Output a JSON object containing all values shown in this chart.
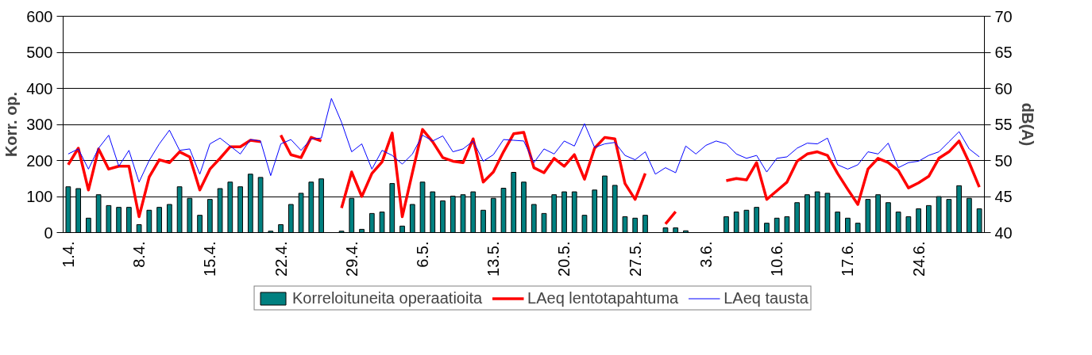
{
  "chart_data": {
    "type": "bar",
    "ylabel": "Korr. op.",
    "y2label": "dB(A)",
    "categories": [
      "1.4.",
      null,
      null,
      null,
      null,
      null,
      null,
      "8.4.",
      null,
      null,
      null,
      null,
      null,
      null,
      "15.4.",
      null,
      null,
      null,
      null,
      null,
      null,
      "22.4.",
      null,
      null,
      null,
      null,
      null,
      null,
      "29.4.",
      null,
      null,
      null,
      null,
      null,
      null,
      "6.5.",
      null,
      null,
      null,
      null,
      null,
      null,
      "13.5.",
      null,
      null,
      null,
      null,
      null,
      null,
      "20.5.",
      null,
      null,
      null,
      null,
      null,
      null,
      "27.5.",
      null,
      null,
      null,
      null,
      null,
      null,
      "3.6.",
      null,
      null,
      null,
      null,
      null,
      null,
      "10.6.",
      null,
      null,
      null,
      null,
      null,
      null,
      "17.6.",
      null,
      null,
      null,
      null,
      null,
      null,
      "24.6.",
      null,
      null,
      null,
      null,
      null,
      null
    ],
    "ylim": [
      0,
      600
    ],
    "yticks": [
      0,
      100,
      200,
      300,
      400,
      500,
      600
    ],
    "y2lim": [
      40,
      70
    ],
    "y2ticks": [
      40,
      45,
      50,
      55,
      60,
      65,
      70
    ],
    "grid": "y",
    "legend": "bottom",
    "series": [
      {
        "name": "Korreloituneita operaatioita",
        "type": "bar",
        "color": "#008080",
        "values": [
          127,
          122,
          40,
          105,
          75,
          70,
          70,
          22,
          62,
          70,
          78,
          127,
          95,
          48,
          92,
          122,
          140,
          127,
          162,
          153,
          4,
          22,
          78,
          109,
          140,
          149,
          null,
          4,
          95,
          9,
          53,
          57,
          136,
          18,
          78,
          140,
          113,
          88,
          101,
          105,
          113,
          62,
          95,
          123,
          167,
          140,
          78,
          53,
          105,
          113,
          113,
          48,
          118,
          157,
          131,
          44,
          40,
          48,
          null,
          13,
          13,
          5,
          null,
          null,
          null,
          44,
          57,
          62,
          70,
          26,
          40,
          44,
          83,
          105,
          113,
          109,
          57,
          40,
          26,
          92,
          105,
          83,
          57,
          44,
          66,
          75,
          100,
          92,
          130,
          95,
          66
        ]
      },
      {
        "name": "LAeq lentotapahtuma",
        "type": "line",
        "axis": "y2",
        "color": "#ff0000",
        "values": [
          49.4,
          51.7,
          45.9,
          51.6,
          48.8,
          49.2,
          49.2,
          42.2,
          47.7,
          50.1,
          49.7,
          51.2,
          50.5,
          45.9,
          48.8,
          50.3,
          51.9,
          51.9,
          52.8,
          52.6,
          null,
          53.5,
          50.8,
          50.4,
          53.2,
          52.7,
          null,
          43.4,
          48.4,
          45.0,
          48.2,
          49.8,
          53.8,
          42.2,
          48.3,
          54.3,
          52.6,
          50.4,
          49.9,
          49.7,
          53.0,
          47.0,
          48.4,
          51.2,
          53.7,
          53.9,
          49.0,
          48.3,
          50.3,
          49.2,
          50.8,
          47.4,
          51.7,
          53.2,
          53.0,
          46.8,
          44.6,
          48.2,
          null,
          41.2,
          42.9,
          null,
          null,
          null,
          null,
          47.2,
          47.5,
          47.3,
          49.7,
          44.6,
          45.8,
          47.0,
          49.9,
          50.9,
          51.2,
          50.7,
          48.2,
          46.0,
          43.9,
          48.8,
          50.3,
          49.7,
          48.6,
          46.2,
          46.9,
          47.8,
          50.3,
          51.2,
          52.7,
          49.7,
          46.3
        ]
      },
      {
        "name": "LAeq tausta",
        "type": "line",
        "axis": "y2",
        "color": "#0000ff",
        "values": [
          50.9,
          51.6,
          48.8,
          51.7,
          53.5,
          49.2,
          51.4,
          47.0,
          50.0,
          52.3,
          54.2,
          51.4,
          51.6,
          48.1,
          52.3,
          53.1,
          52.0,
          50.9,
          52.9,
          52.7,
          47.9,
          52.3,
          52.9,
          51.4,
          53.0,
          53.1,
          58.6,
          55.3,
          51.2,
          52.3,
          48.8,
          51.4,
          50.7,
          49.5,
          50.9,
          53.5,
          52.7,
          53.4,
          51.2,
          51.6,
          52.7,
          49.9,
          50.8,
          52.9,
          52.8,
          52.7,
          49.7,
          51.6,
          50.9,
          52.7,
          52.0,
          55.1,
          51.8,
          52.3,
          52.5,
          50.7,
          50.1,
          51.2,
          48.1,
          49.0,
          48.3,
          52.0,
          50.9,
          52.1,
          52.7,
          52.3,
          50.9,
          50.3,
          50.7,
          48.4,
          50.3,
          50.5,
          51.7,
          52.4,
          52.3,
          53.1,
          49.4,
          48.8,
          49.4,
          51.2,
          50.9,
          52.4,
          49.0,
          49.7,
          49.9,
          50.7,
          51.2,
          52.6,
          54.0,
          51.6,
          50.5
        ]
      }
    ]
  }
}
